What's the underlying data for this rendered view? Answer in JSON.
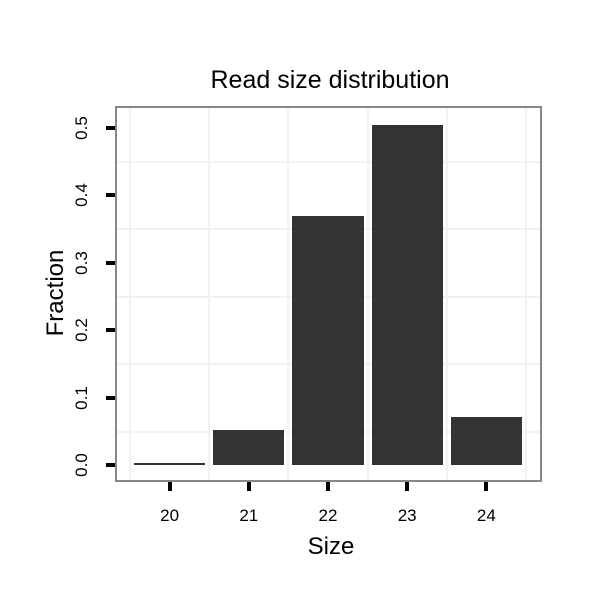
{
  "chart_data": {
    "type": "bar",
    "title": "Read size distribution",
    "xlabel": "Size",
    "ylabel": "Fraction",
    "categories": [
      20,
      21,
      22,
      23,
      24
    ],
    "values": [
      0.004,
      0.053,
      0.37,
      0.505,
      0.072
    ],
    "bar_width": 0.9,
    "x_ticks": [
      20,
      21,
      22,
      23,
      24
    ],
    "x_tick_labels": [
      "20",
      "21",
      "22",
      "23",
      "24"
    ],
    "y_ticks": [
      0.0,
      0.1,
      0.2,
      0.3,
      0.4,
      0.5
    ],
    "y_tick_labels": [
      "0.0",
      "0.1",
      "0.2",
      "0.3",
      "0.4",
      "0.5"
    ],
    "x_minor_gridlines": [
      19.5,
      20.5,
      21.5,
      22.5,
      23.5,
      24.5
    ],
    "y_minor_gridlines": [
      0.05,
      0.15,
      0.25,
      0.35,
      0.45
    ],
    "xlim": [
      19.34,
      24.68
    ],
    "ylim": [
      0,
      0.53
    ],
    "grid": "minor-only",
    "legend": "none",
    "colors": {
      "bar_fill": "#333333",
      "panel_border": "#878787",
      "grid_line": "#f2f2f2",
      "tick": "#000000",
      "text": "#000000",
      "background": "#ffffff"
    }
  }
}
